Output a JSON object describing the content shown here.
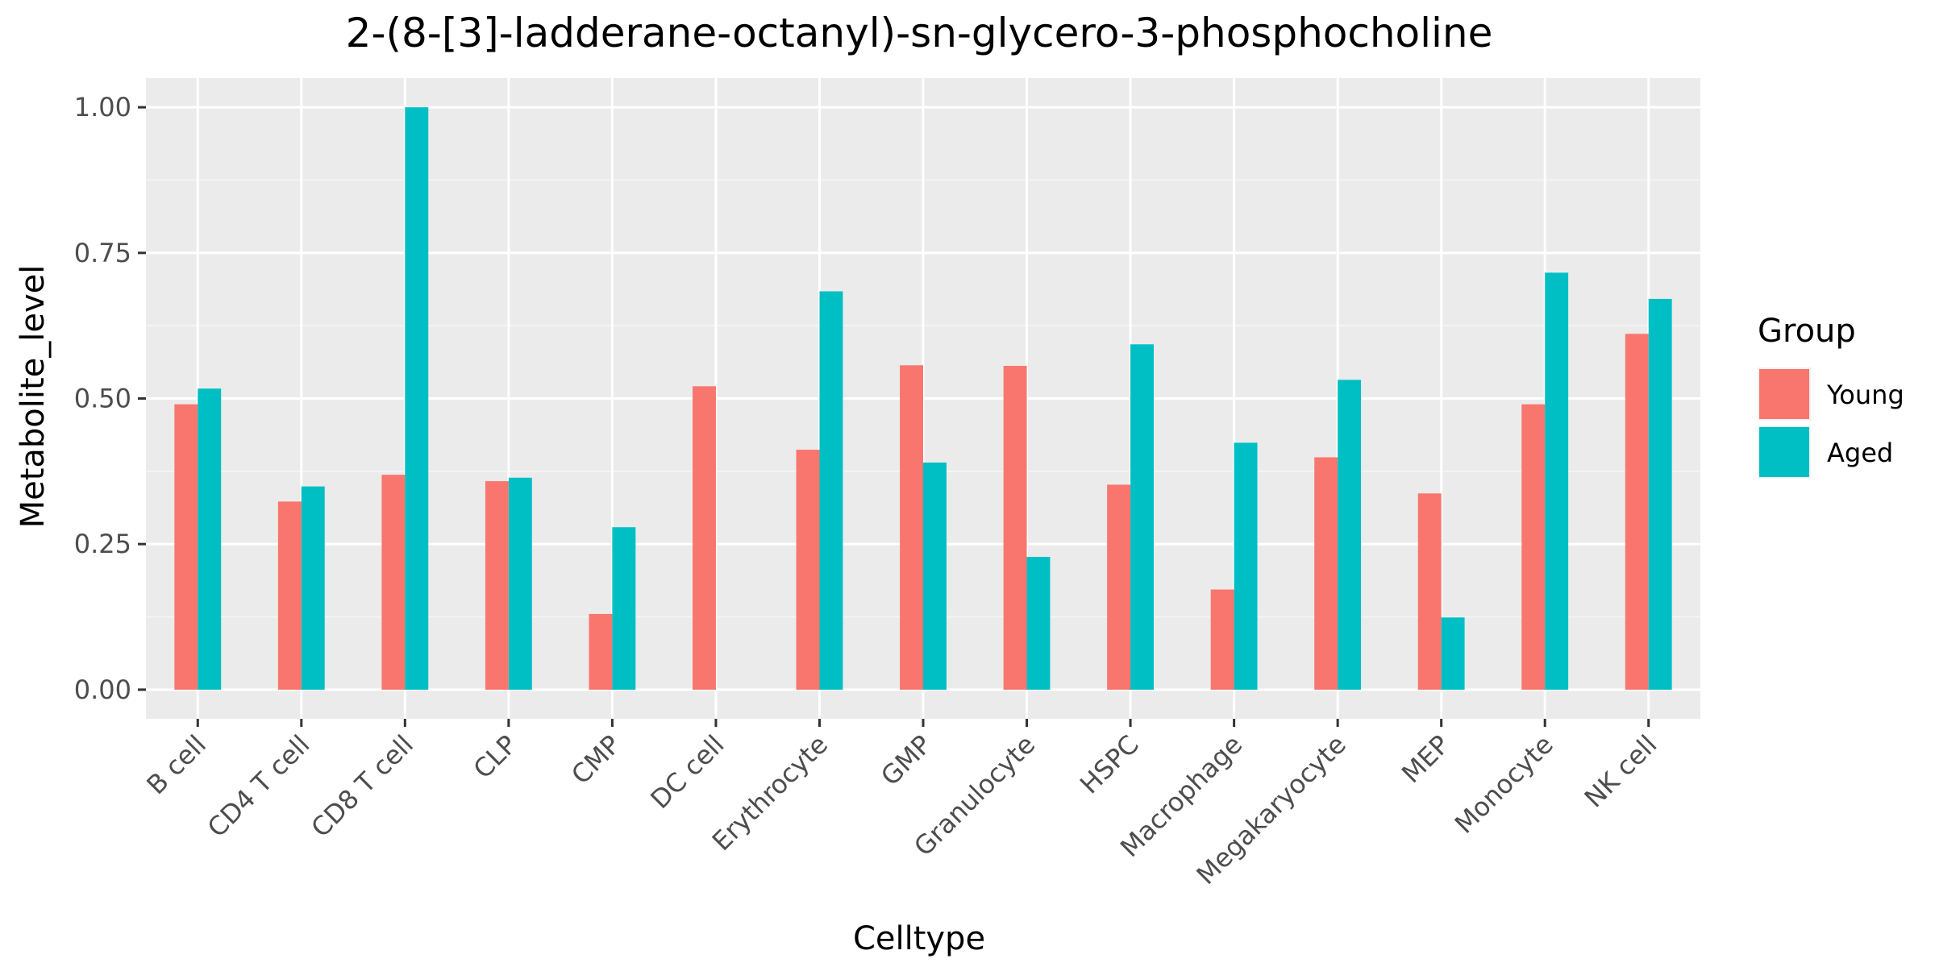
{
  "chart_data": {
    "type": "bar",
    "title": "2-(8-[3]-ladderane-octanyl)-sn-glycero-3-phosphocholine",
    "xlabel": "Celltype",
    "ylabel": "Metabolite_level",
    "ylim": [
      -0.05,
      1.05
    ],
    "yticks": [
      0,
      0.25,
      0.5,
      0.75,
      1.0
    ],
    "ytick_labels": [
      "0.00",
      "0.25",
      "0.50",
      "0.75",
      "1.00"
    ],
    "grid": true,
    "legend_title": "Group",
    "legend_position": "right",
    "categories": [
      "B cell",
      "CD4 T cell",
      "CD8 T cell",
      "CLP",
      "CMP",
      "DC cell",
      "Erythrocyte",
      "GMP",
      "Granulocyte",
      "HSPC",
      "Macrophage",
      "Megakaryocyte",
      "MEP",
      "Monocyte",
      "NK cell"
    ],
    "series": [
      {
        "name": "Young",
        "color": "#F8766D",
        "values": [
          0.49,
          0.323,
          0.369,
          0.358,
          0.13,
          0.521,
          0.412,
          0.557,
          0.556,
          0.352,
          0.172,
          0.399,
          0.337,
          0.49,
          0.611
        ]
      },
      {
        "name": "Aged",
        "color": "#00BFC4",
        "values": [
          0.517,
          0.349,
          1.0,
          0.364,
          0.279,
          null,
          0.684,
          0.39,
          0.228,
          0.593,
          0.424,
          0.532,
          0.124,
          0.716,
          0.671
        ]
      }
    ]
  },
  "colors": {
    "panel_background": "#EBEBEB",
    "grid_major": "#FFFFFF",
    "grid_minor": "#F5F5F5",
    "tick_text": "#4D4D4D",
    "tick_mark": "#333333"
  }
}
